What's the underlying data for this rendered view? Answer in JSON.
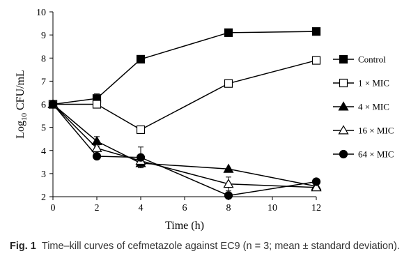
{
  "chart_data": {
    "type": "line",
    "x": [
      0,
      2,
      4,
      8,
      12
    ],
    "xlabel": "Time (h)",
    "ylabel": {
      "prefix": "Log",
      "subscript": "10",
      "suffix": " CFU/mL"
    },
    "xlim": [
      0,
      12
    ],
    "ylim": [
      2,
      10
    ],
    "xticks": [
      "0",
      "2",
      "4",
      "6",
      "8",
      "10",
      "12"
    ],
    "yticks": [
      "2",
      "3",
      "4",
      "5",
      "6",
      "7",
      "8",
      "9",
      "10"
    ],
    "grid": false,
    "legend_position": "right",
    "series": [
      {
        "name": "Control",
        "marker": "filled-square",
        "values": [
          6.0,
          6.25,
          7.95,
          9.1,
          9.15
        ],
        "errors": [
          0.0,
          0.2,
          0.0,
          0.0,
          0.0
        ]
      },
      {
        "name": "1 × MIC",
        "marker": "open-square",
        "values": [
          6.0,
          6.0,
          4.9,
          6.9,
          7.9
        ],
        "errors": [
          0.0,
          0.0,
          0.0,
          0.0,
          0.0
        ]
      },
      {
        "name": "4 × MIC",
        "marker": "filled-triangle",
        "values": [
          6.0,
          4.4,
          3.45,
          3.2,
          2.45
        ],
        "errors": [
          0.0,
          0.2,
          0.0,
          0.0,
          0.0
        ]
      },
      {
        "name": "16 × MIC",
        "marker": "open-triangle",
        "values": [
          6.0,
          4.1,
          3.55,
          2.55,
          2.4
        ],
        "errors": [
          0.0,
          0.15,
          0.0,
          0.3,
          0.0
        ]
      },
      {
        "name": "64 × MIC",
        "marker": "filled-circle",
        "values": [
          6.0,
          3.75,
          3.7,
          2.05,
          2.65
        ],
        "errors": [
          0.0,
          0.0,
          0.45,
          0.0,
          0.0
        ]
      }
    ]
  },
  "caption": {
    "label": "Fig. 1",
    "text": "Time–kill curves of cefmetazole against EC9 (n = 3; mean ± standard deviation)."
  }
}
